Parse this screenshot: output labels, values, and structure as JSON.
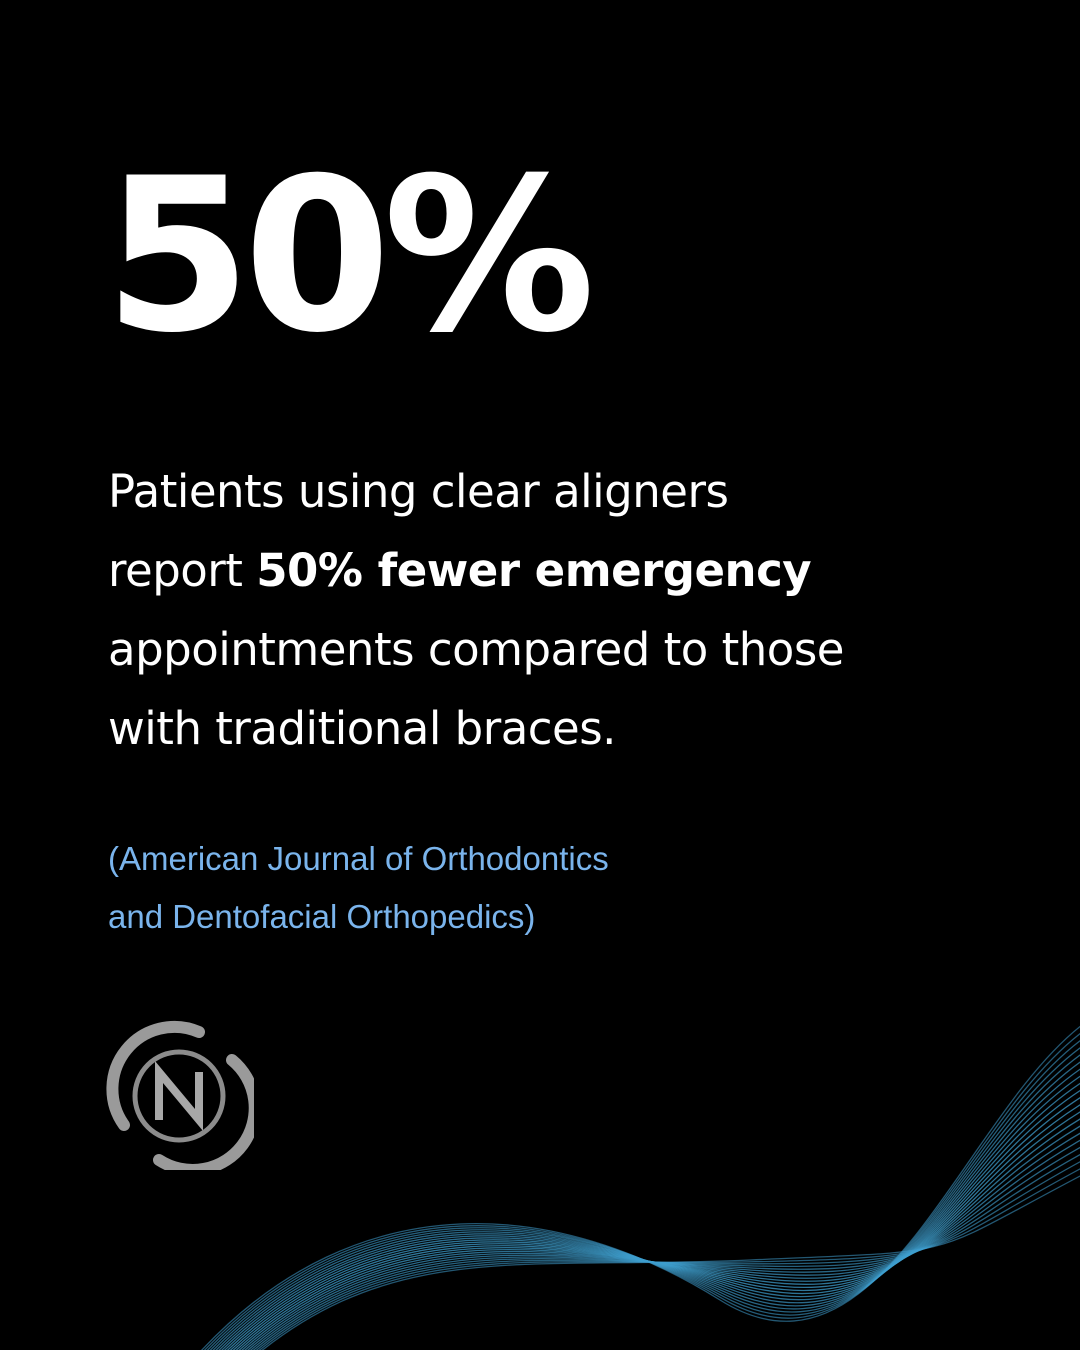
{
  "headline": {
    "stat": "50%"
  },
  "body": {
    "line1": "Patients using clear aligners",
    "line2_prefix": "report ",
    "line2_bold": "50% fewer emergency",
    "line3": "appointments compared to those",
    "line4": "with traditional braces."
  },
  "citation": {
    "line1": "(American Journal of Orthodontics",
    "line2": "and Dentofacial Orthopedics)"
  },
  "logo": {
    "letter": "N",
    "ring_color": "#9a9a9a"
  },
  "colors": {
    "background": "#000000",
    "text": "#ffffff",
    "citation": "#7ab4ec",
    "wave": "#3f9fcf"
  }
}
